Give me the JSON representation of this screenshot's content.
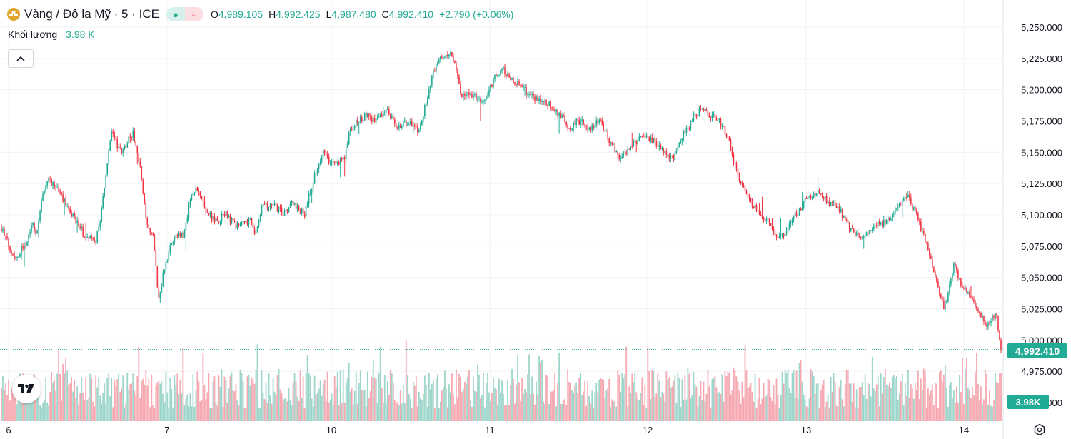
{
  "header": {
    "symbol_title": "Vàng / Đô la Mỹ · 5 · ICE",
    "symbol_icon": "gold-coin-icon",
    "pill_left_icon": "dot-icon",
    "pill_right_icon": "approx-icon",
    "ohlc": {
      "o_label": "O",
      "o_value": "4,989.105",
      "h_label": "H",
      "h_value": "4,992.425",
      "l_label": "L",
      "l_value": "4,987.480",
      "c_label": "C",
      "c_value": "4,992.410"
    },
    "change": "+2.790 (+0.06%)"
  },
  "volume_legend": {
    "label": "Khối lượng",
    "value": "3.98 K"
  },
  "price_tag": "4,992.410",
  "volume_tag": "3.98K",
  "colors": {
    "up": "#22ab94",
    "down": "#f23645",
    "up_vol": "#9fd6cb",
    "down_vol": "#f7a9b1",
    "grid": "#f0f3fa",
    "axis_text": "#131722"
  },
  "chart_data": {
    "type": "candlestick",
    "title": "",
    "xlabel": "",
    "ylabel": "",
    "y_ticks": [
      "5,250.000",
      "5,225.000",
      "5,200.000",
      "5,175.000",
      "5,150.000",
      "5,125.000",
      "5,100.000",
      "5,075.000",
      "5,050.000",
      "5,025.000",
      "5,000.000",
      "4,975.000",
      "4,950.000"
    ],
    "ylim": [
      4944,
      5262
    ],
    "x_ticks": [
      "6",
      "7",
      "10",
      "11",
      "12",
      "13",
      "14"
    ],
    "last_price": 4992.41,
    "path_days": [
      5.0,
      6.45
    ],
    "price_path": [
      [
        0.0,
        5090
      ],
      [
        0.1,
        5080
      ],
      [
        0.3,
        5065
      ],
      [
        0.55,
        5080
      ],
      [
        0.65,
        5095
      ],
      [
        0.75,
        5085
      ],
      [
        0.9,
        5120
      ],
      [
        1.0,
        5130
      ],
      [
        1.35,
        5110
      ],
      [
        1.75,
        5085
      ],
      [
        2.0,
        5078
      ],
      [
        2.1,
        5095
      ],
      [
        2.25,
        5140
      ],
      [
        2.35,
        5165
      ],
      [
        2.55,
        5150
      ],
      [
        2.8,
        5165
      ],
      [
        2.95,
        5140
      ],
      [
        3.1,
        5090
      ],
      [
        3.25,
        5080
      ],
      [
        3.35,
        5030
      ],
      [
        3.45,
        5055
      ],
      [
        3.65,
        5080
      ],
      [
        3.9,
        5085
      ],
      [
        4.0,
        5110
      ],
      [
        4.15,
        5120
      ],
      [
        4.35,
        5105
      ],
      [
        4.55,
        5095
      ],
      [
        4.8,
        5100
      ],
      [
        5.0,
        5090
      ],
      [
        5.3,
        5095
      ],
      [
        5.4,
        5085
      ],
      [
        5.55,
        5105
      ],
      [
        5.75,
        5110
      ],
      [
        6.0,
        5100
      ],
      [
        6.2,
        5110
      ],
      [
        6.45,
        5100
      ],
      [
        6.7,
        5135
      ],
      [
        6.85,
        5150
      ],
      [
        7.05,
        5140
      ],
      [
        7.3,
        5145
      ],
      [
        7.45,
        5170
      ],
      [
        7.75,
        5180
      ],
      [
        8.0,
        5175
      ],
      [
        8.2,
        5185
      ],
      [
        8.4,
        5170
      ],
      [
        8.7,
        5175
      ],
      [
        8.9,
        5165
      ],
      [
        9.2,
        5215
      ],
      [
        9.35,
        5225
      ],
      [
        9.55,
        5230
      ],
      [
        9.65,
        5225
      ],
      [
        9.8,
        5195
      ],
      [
        10.0,
        5195
      ],
      [
        10.3,
        5190
      ],
      [
        10.5,
        5210
      ],
      [
        10.7,
        5215
      ],
      [
        11.0,
        5205
      ],
      [
        11.3,
        5195
      ],
      [
        11.6,
        5190
      ],
      [
        11.9,
        5180
      ],
      [
        12.1,
        5170
      ],
      [
        12.3,
        5175
      ],
      [
        12.55,
        5170
      ],
      [
        12.75,
        5175
      ],
      [
        12.95,
        5160
      ],
      [
        13.2,
        5145
      ],
      [
        13.4,
        5155
      ],
      [
        13.7,
        5165
      ],
      [
        14.0,
        5155
      ],
      [
        14.3,
        5145
      ],
      [
        14.55,
        5165
      ],
      [
        14.8,
        5180
      ],
      [
        14.95,
        5185
      ],
      [
        15.1,
        5180
      ],
      [
        15.3,
        5175
      ],
      [
        15.5,
        5160
      ],
      [
        15.7,
        5130
      ],
      [
        15.9,
        5115
      ],
      [
        16.15,
        5100
      ],
      [
        16.35,
        5095
      ],
      [
        16.55,
        5080
      ],
      [
        16.75,
        5090
      ],
      [
        17.1,
        5110
      ],
      [
        17.4,
        5120
      ],
      [
        17.6,
        5110
      ],
      [
        17.85,
        5105
      ],
      [
        18.05,
        5090
      ],
      [
        18.3,
        5080
      ],
      [
        18.55,
        5090
      ],
      [
        18.9,
        5095
      ],
      [
        19.15,
        5110
      ],
      [
        19.3,
        5115
      ],
      [
        19.55,
        5095
      ],
      [
        19.75,
        5070
      ],
      [
        19.9,
        5050
      ],
      [
        20.1,
        5025
      ],
      [
        20.3,
        5060
      ],
      [
        20.45,
        5045
      ],
      [
        20.65,
        5035
      ],
      [
        20.85,
        5020
      ],
      [
        21.0,
        5010
      ],
      [
        21.2,
        5022
      ],
      [
        21.3,
        4992
      ]
    ],
    "volume_level": 3980
  }
}
